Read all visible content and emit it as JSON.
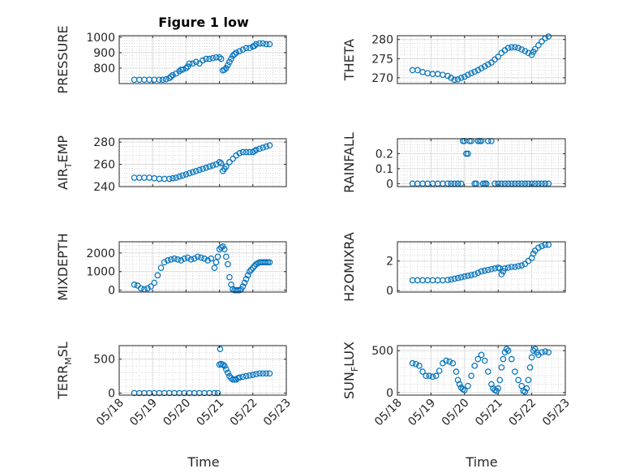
{
  "figure": {
    "title": "Figure 1 low",
    "marker_color": "#0072bd",
    "grid": true,
    "minor_grid": true
  },
  "x_axis": {
    "label": "Time",
    "ticks": [
      "05/18",
      "05/19",
      "05/20",
      "05/21",
      "05/22",
      "05/23"
    ],
    "tick_values": [
      0,
      1,
      2,
      3,
      4,
      5
    ],
    "range": [
      0,
      5
    ],
    "unit": "days from 05/18"
  },
  "chart_data": [
    {
      "id": "pressure",
      "type": "scatter",
      "title": "Figure 1 low",
      "ylabel": "PRESSURE",
      "ylim": [
        700,
        1010
      ],
      "yticks": [
        800,
        900,
        1000
      ],
      "yticklabels": [
        "800",
        "900",
        "1000"
      ],
      "x": [
        0.45,
        0.6,
        0.75,
        0.9,
        1.05,
        1.2,
        1.3,
        1.4,
        1.5,
        1.55,
        1.6,
        1.7,
        1.8,
        1.85,
        1.9,
        2.0,
        2.05,
        2.1,
        2.2,
        2.3,
        2.4,
        2.5,
        2.6,
        2.7,
        2.8,
        2.9,
        3.0,
        3.05,
        3.1,
        3.15,
        3.2,
        3.25,
        3.3,
        3.35,
        3.4,
        3.45,
        3.5,
        3.6,
        3.7,
        3.8,
        3.9,
        4.0,
        4.05,
        4.1,
        4.2,
        4.3,
        4.4,
        4.5
      ],
      "y": [
        725,
        725,
        725,
        725,
        725,
        725,
        725,
        728,
        735,
        745,
        755,
        765,
        780,
        790,
        790,
        800,
        810,
        830,
        830,
        840,
        830,
        850,
        860,
        860,
        865,
        870,
        870,
        860,
        785,
        790,
        800,
        820,
        840,
        860,
        880,
        890,
        900,
        910,
        920,
        930,
        930,
        940,
        945,
        955,
        960,
        960,
        955,
        955
      ]
    },
    {
      "id": "theta",
      "type": "scatter",
      "ylabel": "THETA",
      "ylim": [
        268.5,
        281
      ],
      "yticks": [
        270,
        275,
        280
      ],
      "yticklabels": [
        "270",
        "275",
        "280"
      ],
      "x": [
        0.45,
        0.6,
        0.75,
        0.9,
        1.05,
        1.2,
        1.35,
        1.5,
        1.6,
        1.7,
        1.8,
        1.9,
        2.0,
        2.1,
        2.2,
        2.3,
        2.4,
        2.5,
        2.6,
        2.7,
        2.8,
        2.9,
        3.0,
        3.1,
        3.2,
        3.3,
        3.4,
        3.5,
        3.6,
        3.7,
        3.8,
        3.9,
        4.0,
        4.05,
        4.1,
        4.2,
        4.3,
        4.4,
        4.5
      ],
      "y": [
        272,
        272,
        271.5,
        271.2,
        271,
        271,
        270.8,
        270.5,
        270,
        269.5,
        269.6,
        270,
        270.3,
        270.8,
        271.2,
        271.6,
        272,
        272.5,
        273,
        273.5,
        274,
        274.8,
        275.5,
        276.5,
        277.2,
        277.8,
        278,
        278,
        277.8,
        277.4,
        277,
        276.5,
        276,
        276.8,
        277.5,
        278.5,
        279.5,
        280.3,
        280.8
      ]
    },
    {
      "id": "air-temp",
      "type": "scatter",
      "ylabel": "AIR",
      "ylabel_sub": "T",
      "ylabel_suffix": "EMP",
      "ylim": [
        240,
        283
      ],
      "yticks": [
        240,
        260,
        280
      ],
      "yticklabels": [
        "240",
        "260",
        "280"
      ],
      "x": [
        0.45,
        0.6,
        0.75,
        0.9,
        1.05,
        1.2,
        1.35,
        1.5,
        1.6,
        1.7,
        1.8,
        1.9,
        2.0,
        2.1,
        2.2,
        2.3,
        2.4,
        2.5,
        2.6,
        2.7,
        2.8,
        2.9,
        3.0,
        3.05,
        3.1,
        3.15,
        3.2,
        3.3,
        3.4,
        3.5,
        3.6,
        3.7,
        3.8,
        3.9,
        4.0,
        4.05,
        4.1,
        4.2,
        4.3,
        4.4,
        4.5
      ],
      "y": [
        248,
        248,
        248,
        248,
        247.5,
        247,
        247,
        247,
        247.5,
        248,
        249,
        250,
        251,
        252,
        253,
        254,
        255,
        256,
        257,
        258,
        259,
        260,
        262,
        261,
        254,
        256,
        258,
        262,
        265,
        268,
        270,
        271,
        271,
        271,
        271,
        272,
        273,
        274,
        275,
        276,
        277
      ]
    },
    {
      "id": "rainfall",
      "type": "scatter",
      "ylabel": "RAINFALL",
      "ylim": [
        -0.02,
        0.3
      ],
      "yticks": [
        0,
        0.1,
        0.2
      ],
      "yticklabels": [
        "0",
        "0.1",
        "0.2"
      ],
      "x": [
        0.45,
        0.6,
        0.75,
        0.9,
        1.05,
        1.2,
        1.35,
        1.5,
        1.6,
        1.7,
        1.8,
        1.9,
        1.95,
        2.0,
        2.05,
        2.1,
        2.15,
        2.2,
        2.3,
        2.35,
        2.4,
        2.45,
        2.5,
        2.55,
        2.6,
        2.65,
        2.7,
        2.8,
        2.9,
        3.0,
        3.1,
        3.2,
        3.3,
        3.4,
        3.5,
        3.6,
        3.7,
        3.8,
        3.9,
        4.0,
        4.1,
        4.2,
        4.3,
        4.4,
        4.5
      ],
      "y": [
        0,
        0,
        0,
        0,
        0,
        0,
        0,
        0,
        0,
        0,
        0,
        0,
        0.285,
        0.285,
        0.2,
        0.2,
        0.285,
        0.285,
        0,
        0,
        0.285,
        0.285,
        0.285,
        0,
        0,
        0,
        0.285,
        0.285,
        0,
        0,
        0,
        0,
        0,
        0,
        0,
        0,
        0,
        0,
        0,
        0,
        0,
        0,
        0,
        0,
        0
      ]
    },
    {
      "id": "mixdepth",
      "type": "scatter",
      "ylabel": "MIXDEPTH",
      "ylim": [
        -100,
        2600
      ],
      "yticks": [
        0,
        1000,
        2000
      ],
      "yticklabels": [
        "0",
        "1000",
        "2000"
      ],
      "x": [
        0.45,
        0.55,
        0.65,
        0.75,
        0.85,
        0.95,
        1.05,
        1.15,
        1.25,
        1.35,
        1.45,
        1.55,
        1.65,
        1.75,
        1.85,
        1.95,
        2.05,
        2.15,
        2.25,
        2.35,
        2.45,
        2.55,
        2.65,
        2.75,
        2.85,
        2.9,
        2.95,
        3.0,
        3.05,
        3.1,
        3.15,
        3.2,
        3.25,
        3.3,
        3.35,
        3.4,
        3.45,
        3.5,
        3.55,
        3.6,
        3.65,
        3.7,
        3.75,
        3.8,
        3.85,
        3.9,
        3.95,
        4.0,
        4.05,
        4.1,
        4.15,
        4.2,
        4.25,
        4.3,
        4.35,
        4.4,
        4.45,
        4.5
      ],
      "y": [
        300,
        250,
        100,
        50,
        100,
        200,
        400,
        800,
        1200,
        1500,
        1600,
        1650,
        1700,
        1650,
        1600,
        1700,
        1750,
        1650,
        1700,
        1800,
        1750,
        1700,
        1600,
        1700,
        1200,
        1500,
        1800,
        2200,
        2300,
        2350,
        2200,
        1800,
        1400,
        700,
        300,
        50,
        0,
        0,
        0,
        0,
        50,
        200,
        400,
        600,
        800,
        1000,
        1100,
        1200,
        1300,
        1400,
        1450,
        1500,
        1500,
        1500,
        1500,
        1500,
        1500,
        1500
      ]
    },
    {
      "id": "h2omixra",
      "type": "scatter",
      "ylabel": "H2OMIXRA",
      "ylim": [
        -0.1,
        3.3
      ],
      "yticks": [
        0,
        2
      ],
      "yticklabels": [
        "0",
        "2"
      ],
      "x": [
        0.45,
        0.6,
        0.75,
        0.9,
        1.05,
        1.2,
        1.35,
        1.5,
        1.6,
        1.7,
        1.8,
        1.9,
        2.0,
        2.1,
        2.2,
        2.3,
        2.4,
        2.5,
        2.6,
        2.7,
        2.8,
        2.9,
        3.0,
        3.05,
        3.1,
        3.15,
        3.2,
        3.3,
        3.4,
        3.5,
        3.6,
        3.7,
        3.8,
        3.9,
        4.0,
        4.05,
        4.1,
        4.2,
        4.3,
        4.4,
        4.5
      ],
      "y": [
        0.7,
        0.7,
        0.7,
        0.7,
        0.7,
        0.7,
        0.7,
        0.72,
        0.75,
        0.8,
        0.85,
        0.9,
        0.95,
        1.0,
        1.05,
        1.1,
        1.2,
        1.3,
        1.35,
        1.4,
        1.45,
        1.5,
        1.55,
        1.5,
        1.1,
        1.3,
        1.5,
        1.55,
        1.6,
        1.6,
        1.65,
        1.7,
        1.8,
        2.0,
        2.2,
        2.5,
        2.7,
        2.9,
        3.0,
        3.1,
        3.1
      ]
    },
    {
      "id": "terr-msl",
      "type": "scatter",
      "ylabel": "TERR",
      "ylabel_sub": "M",
      "ylabel_suffix": "SL",
      "ylim": [
        -30,
        700
      ],
      "yticks": [
        0,
        500
      ],
      "yticklabels": [
        "0",
        "500"
      ],
      "x": [
        0.45,
        0.6,
        0.75,
        0.9,
        1.05,
        1.2,
        1.35,
        1.5,
        1.65,
        1.8,
        1.95,
        2.1,
        2.25,
        2.4,
        2.55,
        2.7,
        2.85,
        2.95,
        3.0,
        3.02,
        3.05,
        3.1,
        3.15,
        3.2,
        3.25,
        3.3,
        3.35,
        3.4,
        3.45,
        3.5,
        3.55,
        3.6,
        3.7,
        3.8,
        3.9,
        4.0,
        4.1,
        4.2,
        4.3,
        4.4,
        4.5
      ],
      "y": [
        0,
        0,
        0,
        0,
        0,
        0,
        0,
        0,
        0,
        0,
        0,
        0,
        0,
        0,
        0,
        0,
        0,
        0,
        420,
        650,
        430,
        420,
        400,
        350,
        300,
        250,
        220,
        200,
        200,
        200,
        220,
        230,
        240,
        250,
        260,
        270,
        280,
        290,
        290,
        290,
        290
      ]
    },
    {
      "id": "sun-flux",
      "type": "scatter",
      "ylabel": "SUN",
      "ylabel_sub": "F",
      "ylabel_suffix": "LUX",
      "ylim": [
        -30,
        560
      ],
      "yticks": [
        0,
        500
      ],
      "yticklabels": [
        "0",
        "500"
      ],
      "x": [
        0.45,
        0.55,
        0.65,
        0.75,
        0.85,
        0.95,
        1.05,
        1.15,
        1.25,
        1.35,
        1.45,
        1.55,
        1.65,
        1.75,
        1.8,
        1.85,
        1.9,
        1.95,
        2.0,
        2.1,
        2.2,
        2.3,
        2.4,
        2.5,
        2.6,
        2.7,
        2.8,
        2.85,
        2.9,
        2.95,
        3.0,
        3.05,
        3.1,
        3.15,
        3.2,
        3.25,
        3.3,
        3.4,
        3.5,
        3.6,
        3.7,
        3.75,
        3.8,
        3.85,
        3.9,
        3.95,
        4.0,
        4.05,
        4.1,
        4.15,
        4.2,
        4.3,
        4.4,
        4.5
      ],
      "y": [
        350,
        340,
        320,
        250,
        200,
        200,
        190,
        200,
        260,
        350,
        380,
        370,
        350,
        250,
        150,
        100,
        60,
        40,
        30,
        80,
        200,
        320,
        400,
        450,
        380,
        250,
        100,
        50,
        30,
        20,
        50,
        150,
        300,
        400,
        480,
        520,
        500,
        400,
        250,
        150,
        80,
        20,
        10,
        50,
        150,
        300,
        420,
        500,
        520,
        480,
        450,
        480,
        490,
        480
      ]
    }
  ]
}
